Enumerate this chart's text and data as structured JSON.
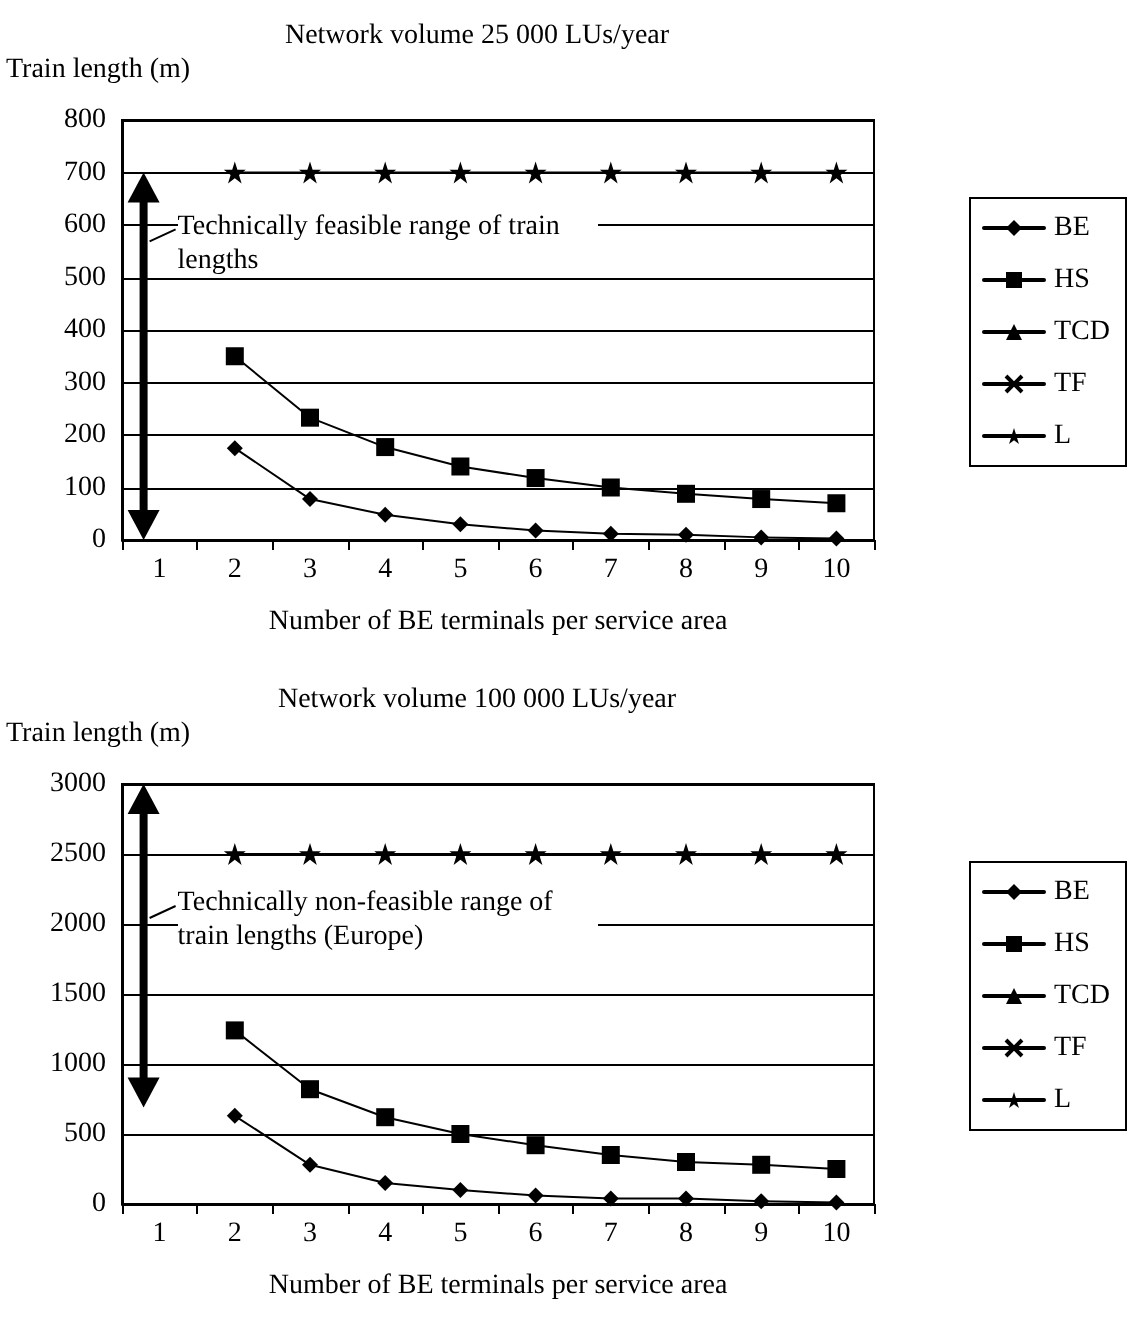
{
  "chart_data": [
    {
      "type": "line",
      "title": "Network volume 25 000 LUs/year",
      "ylabel": "Train length (m)",
      "xlabel": "Number of BE terminals per service area",
      "categories": [
        "1",
        "2",
        "3",
        "4",
        "5",
        "6",
        "7",
        "8",
        "9",
        "10"
      ],
      "ylim": [
        0,
        800
      ],
      "yticks": [
        0,
        100,
        200,
        300,
        400,
        500,
        600,
        700,
        800
      ],
      "grid": "y",
      "legend": "right",
      "line_style": "solid",
      "annotations": [
        "Technically feasible range of train lengths"
      ],
      "series": [
        {
          "name": "BE",
          "color": "#000000",
          "marker": "diamond",
          "values": [
            null,
            175,
            78,
            48,
            30,
            18,
            12,
            10,
            5,
            3
          ]
        },
        {
          "name": "HS",
          "color": "#000000",
          "marker": "square",
          "values": [
            null,
            350,
            233,
            177,
            140,
            118,
            100,
            88,
            78,
            70
          ]
        },
        {
          "name": "TCD",
          "color": "#000000",
          "marker": "triangle",
          "values": [
            null,
            null,
            null,
            null,
            null,
            null,
            null,
            null,
            null,
            null
          ]
        },
        {
          "name": "TF",
          "color": "#000000",
          "marker": "cross",
          "values": [
            null,
            null,
            null,
            null,
            null,
            null,
            null,
            null,
            null,
            null
          ]
        },
        {
          "name": "L",
          "color": "#000000",
          "marker": "star",
          "values": [
            null,
            700,
            700,
            700,
            700,
            700,
            700,
            700,
            700,
            700
          ]
        }
      ]
    },
    {
      "type": "line",
      "title": "Network volume 100 000 LUs/year",
      "ylabel": "Train length (m)",
      "xlabel": "Number of BE terminals per service area",
      "categories": [
        "1",
        "2",
        "3",
        "4",
        "5",
        "6",
        "7",
        "8",
        "9",
        "10"
      ],
      "ylim": [
        0,
        3000
      ],
      "yticks": [
        0,
        500,
        1000,
        1500,
        2000,
        2500,
        3000
      ],
      "grid": "y",
      "legend": "right",
      "line_style": "solid",
      "annotations": [
        "Technically non-feasible range of train lengths (Europe)"
      ],
      "series": [
        {
          "name": "BE",
          "color": "#000000",
          "marker": "diamond",
          "values": [
            null,
            630,
            280,
            150,
            100,
            60,
            40,
            40,
            20,
            10
          ]
        },
        {
          "name": "HS",
          "color": "#000000",
          "marker": "square",
          "values": [
            null,
            1240,
            820,
            620,
            500,
            420,
            350,
            300,
            280,
            250
          ]
        },
        {
          "name": "TCD",
          "color": "#000000",
          "marker": "triangle",
          "values": [
            null,
            null,
            null,
            null,
            null,
            null,
            null,
            null,
            null,
            null
          ]
        },
        {
          "name": "TF",
          "color": "#000000",
          "marker": "cross",
          "values": [
            null,
            null,
            null,
            null,
            null,
            null,
            null,
            null,
            null,
            null
          ]
        },
        {
          "name": "L",
          "color": "#000000",
          "marker": "star",
          "values": [
            null,
            2500,
            2500,
            2500,
            2500,
            2500,
            2500,
            2500,
            2500,
            2500
          ]
        }
      ]
    }
  ]
}
